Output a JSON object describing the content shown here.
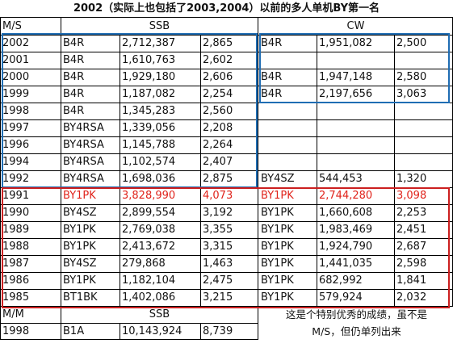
{
  "title": "2002（实际上也包括了2003,2004）以前的多人单机BY第一名",
  "header": {
    "col_ms": "M/S",
    "ssb": "SSB",
    "cw": "CW"
  },
  "rows": [
    {
      "year": "2002",
      "ssb_call": "B4R",
      "ssb_score": "2,712,387",
      "ssb_qso": "2,865",
      "cw_call": "B4R",
      "cw_score": "1,951,082",
      "cw_qso": "2,500",
      "highlight": false
    },
    {
      "year": "2001",
      "ssb_call": "B4R",
      "ssb_score": "1,610,763",
      "ssb_qso": "2,602",
      "cw_call": "",
      "cw_score": "",
      "cw_qso": "",
      "highlight": false
    },
    {
      "year": "2000",
      "ssb_call": "B4R",
      "ssb_score": "1,929,180",
      "ssb_qso": "2,606",
      "cw_call": "B4R",
      "cw_score": "1,947,148",
      "cw_qso": "2,580",
      "highlight": false
    },
    {
      "year": "1999",
      "ssb_call": "B4R",
      "ssb_score": "1,187,082",
      "ssb_qso": "2,254",
      "cw_call": "B4R",
      "cw_score": "2,197,656",
      "cw_qso": "3,063",
      "highlight": false
    },
    {
      "year": "1998",
      "ssb_call": "B4R",
      "ssb_score": "1,345,283",
      "ssb_qso": "2,560",
      "cw_call": "",
      "cw_score": "",
      "cw_qso": "",
      "highlight": false
    },
    {
      "year": "1997",
      "ssb_call": "BY4RSA",
      "ssb_score": "1,339,056",
      "ssb_qso": "2,208",
      "cw_call": "",
      "cw_score": "",
      "cw_qso": "",
      "highlight": false
    },
    {
      "year": "1996",
      "ssb_call": "BY4RSA",
      "ssb_score": "1,145,788",
      "ssb_qso": "2,264",
      "cw_call": "",
      "cw_score": "",
      "cw_qso": "",
      "highlight": false
    },
    {
      "year": "1994",
      "ssb_call": "BY4RSA",
      "ssb_score": "1,102,574",
      "ssb_qso": "2,407",
      "cw_call": "",
      "cw_score": "",
      "cw_qso": "",
      "highlight": false
    },
    {
      "year": "1992",
      "ssb_call": "BY4RSA",
      "ssb_score": "1,698,036",
      "ssb_qso": "2,875",
      "cw_call": "BY4SZ",
      "cw_score": "544,453",
      "cw_qso": "1,320",
      "highlight": false
    },
    {
      "year": "1991",
      "ssb_call": "BY1PK",
      "ssb_score": "3,828,990",
      "ssb_qso": "4,073",
      "cw_call": "BY1PK",
      "cw_score": "2,744,280",
      "cw_qso": "3,098",
      "highlight": true
    },
    {
      "year": "1990",
      "ssb_call": "BY4SZ",
      "ssb_score": "2,899,554",
      "ssb_qso": "3,192",
      "cw_call": "BY1PK",
      "cw_score": "1,660,608",
      "cw_qso": "2,253",
      "highlight": false
    },
    {
      "year": "1989",
      "ssb_call": "BY1PK",
      "ssb_score": "2,769,038",
      "ssb_qso": "3,355",
      "cw_call": "BY1PK",
      "cw_score": "1,983,469",
      "cw_qso": "2,451",
      "highlight": false
    },
    {
      "year": "1988",
      "ssb_call": "BY1PK",
      "ssb_score": "2,413,672",
      "ssb_qso": "3,315",
      "cw_call": "BY1PK",
      "cw_score": "1,924,790",
      "cw_qso": "2,687",
      "highlight": false
    },
    {
      "year": "1987",
      "ssb_call": "BY4SZ",
      "ssb_score": "279,868",
      "ssb_qso": "1,463",
      "cw_call": "BY1PK",
      "cw_score": "1,441,035",
      "cw_qso": "2,598",
      "highlight": false
    },
    {
      "year": "1986",
      "ssb_call": "BY1PK",
      "ssb_score": "1,182,104",
      "ssb_qso": "2,475",
      "cw_call": "BY1PK",
      "cw_score": "682,992",
      "cw_qso": "1,841",
      "highlight": false
    },
    {
      "year": "1985",
      "ssb_call": "BT1BK",
      "ssb_score": "1,402,086",
      "ssb_qso": "3,215",
      "cw_call": "BY1PK",
      "cw_score": "579,924",
      "cw_qso": "2,032",
      "highlight": false
    }
  ],
  "mm_header": {
    "col_mm": "M/M",
    "ssb": "SSB"
  },
  "mm_row": {
    "year": "1998",
    "call": "B1A",
    "score": "10,143,924",
    "qso": "8,739"
  },
  "note": {
    "line1": "这是个特别优秀的成绩，虽不是",
    "line2": "M/S，但仍单列出来"
  },
  "colors": {
    "red": "#e0231b",
    "blue_box": "#1f6db3",
    "red_box": "#cc1f1f"
  }
}
